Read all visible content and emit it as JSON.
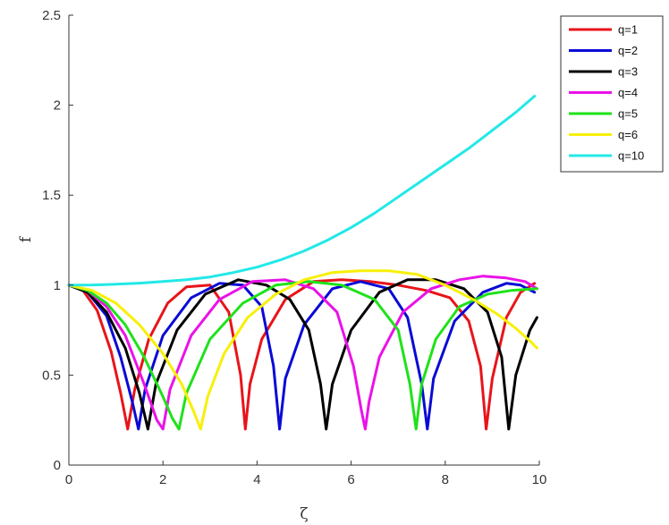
{
  "chart_data": {
    "type": "line",
    "title": "",
    "xlabel": "ζ",
    "ylabel": "f",
    "xlim": [
      0,
      10
    ],
    "ylim": [
      0,
      2.5
    ],
    "xticks": [
      0,
      2,
      4,
      6,
      8,
      10
    ],
    "yticks": [
      0,
      0.5,
      1,
      1.5,
      2,
      2.5
    ],
    "xtick_labels": [
      "0",
      "2",
      "4",
      "6",
      "8",
      "10"
    ],
    "ytick_labels": [
      "0",
      "0.5",
      "1",
      "1.5",
      "2",
      "2.5"
    ],
    "grid": false,
    "legend_position": "outside-top-right",
    "series": [
      {
        "name": "q=1",
        "color": "#e8141a",
        "x": [
          0,
          0.3,
          0.6,
          0.9,
          1.1,
          1.25,
          1.4,
          1.7,
          2.1,
          2.5,
          3.0,
          3.4,
          3.65,
          3.75,
          3.85,
          4.1,
          4.6,
          5.2,
          5.8,
          6.4,
          7.0,
          7.6,
          8.1,
          8.5,
          8.75,
          8.87,
          9.0,
          9.3,
          9.6,
          9.9
        ],
        "y": [
          1,
          0.97,
          0.86,
          0.63,
          0.4,
          0.2,
          0.42,
          0.7,
          0.9,
          0.99,
          1.0,
          0.85,
          0.5,
          0.2,
          0.45,
          0.7,
          0.92,
          1.02,
          1.03,
          1.02,
          1.0,
          0.97,
          0.93,
          0.8,
          0.55,
          0.2,
          0.48,
          0.82,
          0.96,
          1.01
        ]
      },
      {
        "name": "q=2",
        "color": "#0a0ad6",
        "x": [
          0,
          0.4,
          0.8,
          1.1,
          1.35,
          1.48,
          1.62,
          2.0,
          2.6,
          3.2,
          3.7,
          4.1,
          4.35,
          4.48,
          4.6,
          5.0,
          5.6,
          6.2,
          6.8,
          7.2,
          7.5,
          7.62,
          7.75,
          8.2,
          8.8,
          9.3,
          9.6,
          9.9
        ],
        "y": [
          1,
          0.96,
          0.83,
          0.6,
          0.35,
          0.2,
          0.42,
          0.72,
          0.93,
          1.01,
          1.0,
          0.88,
          0.55,
          0.2,
          0.48,
          0.78,
          0.98,
          1.02,
          0.98,
          0.82,
          0.45,
          0.2,
          0.48,
          0.8,
          0.96,
          1.01,
          1.0,
          0.96
        ]
      },
      {
        "name": "q=3",
        "color": "#000000",
        "x": [
          0,
          0.4,
          0.8,
          1.2,
          1.5,
          1.68,
          1.85,
          2.3,
          2.9,
          3.6,
          4.2,
          4.7,
          5.1,
          5.35,
          5.47,
          5.6,
          6.0,
          6.6,
          7.2,
          7.8,
          8.4,
          8.9,
          9.2,
          9.35,
          9.5,
          9.8,
          9.95
        ],
        "y": [
          1,
          0.96,
          0.85,
          0.65,
          0.4,
          0.2,
          0.45,
          0.75,
          0.95,
          1.03,
          1.0,
          0.92,
          0.75,
          0.45,
          0.2,
          0.45,
          0.75,
          0.96,
          1.03,
          1.03,
          0.98,
          0.85,
          0.6,
          0.2,
          0.5,
          0.75,
          0.82
        ]
      },
      {
        "name": "q=4",
        "color": "#ea12e8",
        "x": [
          0,
          0.4,
          0.8,
          1.2,
          1.6,
          1.87,
          2.0,
          2.15,
          2.6,
          3.2,
          3.9,
          4.6,
          5.2,
          5.7,
          6.05,
          6.22,
          6.3,
          6.38,
          6.6,
          7.1,
          7.7,
          8.3,
          8.8,
          9.3,
          9.7,
          9.95
        ],
        "y": [
          1,
          0.97,
          0.88,
          0.72,
          0.45,
          0.25,
          0.2,
          0.42,
          0.72,
          0.92,
          1.02,
          1.03,
          0.98,
          0.85,
          0.55,
          0.3,
          0.2,
          0.35,
          0.6,
          0.85,
          0.98,
          1.03,
          1.05,
          1.04,
          1.02,
          0.98
        ]
      },
      {
        "name": "q=5",
        "color": "#1fe21a",
        "x": [
          0,
          0.4,
          0.8,
          1.2,
          1.6,
          2.0,
          2.2,
          2.34,
          2.5,
          3.0,
          3.7,
          4.4,
          5.1,
          5.8,
          6.5,
          7.0,
          7.25,
          7.38,
          7.5,
          7.8,
          8.3,
          8.9,
          9.4,
          9.95
        ],
        "y": [
          1,
          0.97,
          0.9,
          0.78,
          0.6,
          0.38,
          0.26,
          0.2,
          0.4,
          0.7,
          0.9,
          1.0,
          1.02,
          1.0,
          0.92,
          0.75,
          0.45,
          0.2,
          0.45,
          0.7,
          0.88,
          0.95,
          0.97,
          0.98
        ]
      },
      {
        "name": "q=6",
        "color": "#f7f008",
        "x": [
          0,
          0.5,
          1.0,
          1.5,
          2.0,
          2.4,
          2.65,
          2.8,
          2.95,
          3.3,
          3.8,
          4.4,
          5.0,
          5.6,
          6.2,
          6.8,
          7.4,
          8.0,
          8.6,
          9.1,
          9.5,
          9.8,
          9.95
        ],
        "y": [
          1,
          0.97,
          0.9,
          0.78,
          0.62,
          0.45,
          0.3,
          0.2,
          0.38,
          0.62,
          0.82,
          0.95,
          1.03,
          1.07,
          1.08,
          1.08,
          1.06,
          1.0,
          0.92,
          0.84,
          0.76,
          0.69,
          0.65
        ]
      },
      {
        "name": "q=10",
        "color": "#23e8e8",
        "x": [
          0,
          0.5,
          1.0,
          1.5,
          2.0,
          2.5,
          3.0,
          3.5,
          4.0,
          4.5,
          5.0,
          5.5,
          6.0,
          6.5,
          7.0,
          7.5,
          8.0,
          8.5,
          9.0,
          9.5,
          9.9
        ],
        "y": [
          1,
          1.001,
          1.005,
          1.011,
          1.02,
          1.03,
          1.045,
          1.07,
          1.1,
          1.14,
          1.19,
          1.25,
          1.32,
          1.4,
          1.49,
          1.58,
          1.67,
          1.76,
          1.86,
          1.96,
          2.05
        ]
      }
    ]
  }
}
